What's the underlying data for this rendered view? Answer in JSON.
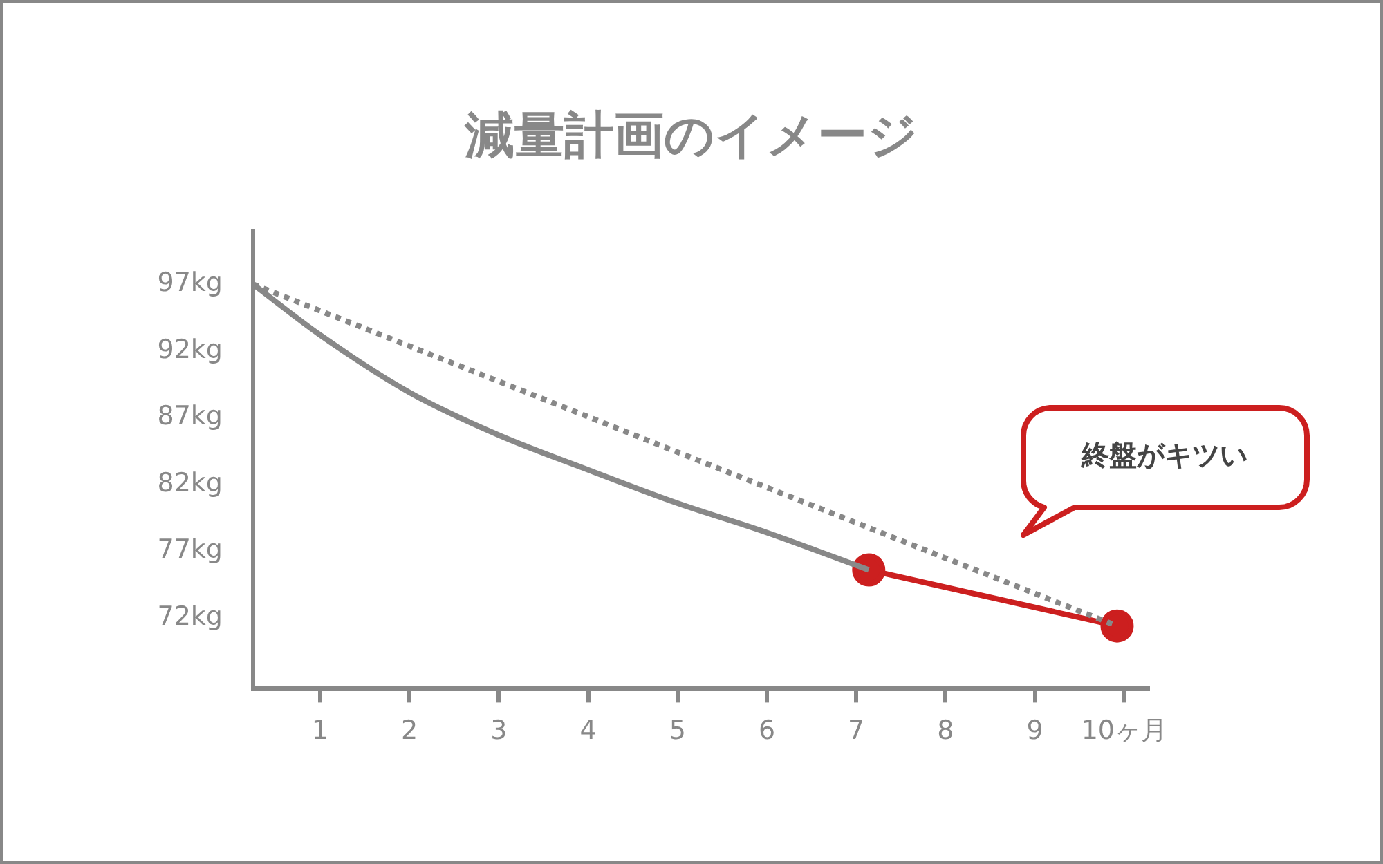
{
  "chart_data": {
    "type": "line",
    "title": "減量計画のイメージ",
    "xlim": [
      0.25,
      10.28
    ],
    "ylim": [
      66.7,
      101
    ],
    "xticks": [
      1,
      2,
      3,
      4,
      5,
      6,
      7,
      8,
      9,
      {
        "value": 10,
        "label": "10ヶ月"
      }
    ],
    "yticks": [
      {
        "value": 72,
        "label": "72kg"
      },
      {
        "value": 77,
        "label": "77kg"
      },
      {
        "value": 82,
        "label": "82kg"
      },
      {
        "value": 87,
        "label": "87kg"
      },
      {
        "value": 92,
        "label": "92kg"
      },
      {
        "value": 97,
        "label": "97kg"
      }
    ],
    "grid": false,
    "legend": false,
    "annotations": [
      "終盤がキツい"
    ],
    "series": [
      {
        "color": "#888888",
        "line_style": "dotted",
        "marker": "none",
        "x": [
          0.25,
          9.92
        ],
        "values": [
          97,
          71.4
        ]
      },
      {
        "color": "#888888",
        "line_style": "solid",
        "marker": "none",
        "x": [
          0.25,
          1,
          2,
          3,
          4,
          5,
          6,
          7.14
        ],
        "values": [
          97,
          93.2,
          88.9,
          85.7,
          83.1,
          80.6,
          78.4,
          75.6
        ]
      },
      {
        "color": "#cc1f1f",
        "line_style": "solid",
        "marker": "circle",
        "x": [
          7.14,
          9.92
        ],
        "values": [
          75.6,
          71.4
        ]
      }
    ]
  }
}
